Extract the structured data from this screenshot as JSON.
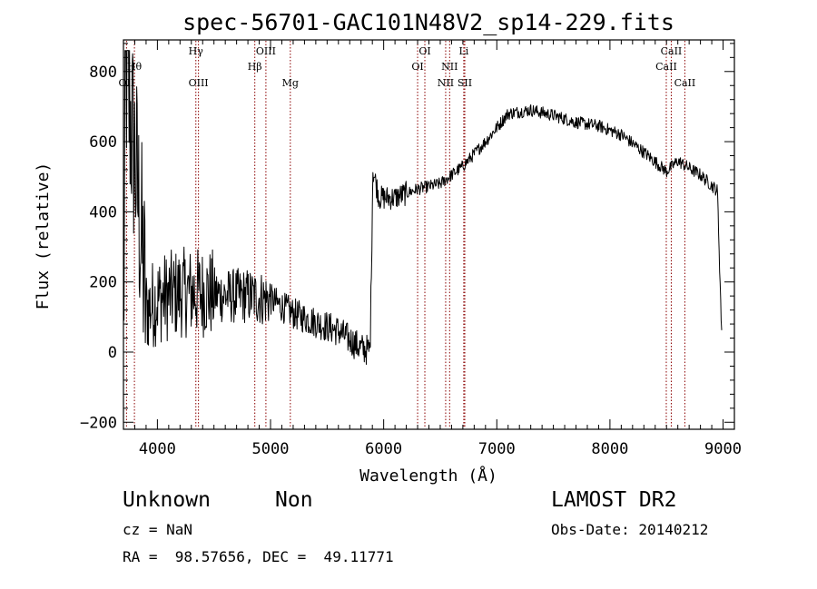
{
  "chart_data": {
    "type": "line",
    "title": "spec-56701-GAC101N48V2_sp14-229.fits",
    "xlabel": "Wavelength (Å)",
    "ylabel": "Flux (relative)",
    "xlim": [
      3700,
      9100
    ],
    "ylim": [
      -220,
      890
    ],
    "x_ticks": [
      4000,
      5000,
      6000,
      7000,
      8000,
      9000
    ],
    "y_ticks": [
      -200,
      0,
      200,
      400,
      600,
      800
    ],
    "spectrum_color": "#000000",
    "line_marker_color": "#8b0000",
    "spectrum_anchors": [
      {
        "x": 3700,
        "y": 40
      },
      {
        "x": 3720,
        "y": 820
      },
      {
        "x": 3750,
        "y": 700
      },
      {
        "x": 3800,
        "y": 560
      },
      {
        "x": 3850,
        "y": 350
      },
      {
        "x": 3900,
        "y": 120
      },
      {
        "x": 4000,
        "y": 150
      },
      {
        "x": 4200,
        "y": 170
      },
      {
        "x": 4400,
        "y": 170
      },
      {
        "x": 4600,
        "y": 160
      },
      {
        "x": 4800,
        "y": 160
      },
      {
        "x": 5000,
        "y": 150
      },
      {
        "x": 5200,
        "y": 110
      },
      {
        "x": 5400,
        "y": 85
      },
      {
        "x": 5600,
        "y": 60
      },
      {
        "x": 5800,
        "y": 10
      },
      {
        "x": 5880,
        "y": 5
      },
      {
        "x": 5905,
        "y": 520
      },
      {
        "x": 5960,
        "y": 440
      },
      {
        "x": 6100,
        "y": 440
      },
      {
        "x": 6300,
        "y": 465
      },
      {
        "x": 6500,
        "y": 480
      },
      {
        "x": 6700,
        "y": 530
      },
      {
        "x": 6900,
        "y": 600
      },
      {
        "x": 7100,
        "y": 680
      },
      {
        "x": 7300,
        "y": 690
      },
      {
        "x": 7500,
        "y": 675
      },
      {
        "x": 7700,
        "y": 655
      },
      {
        "x": 7900,
        "y": 645
      },
      {
        "x": 8100,
        "y": 620
      },
      {
        "x": 8300,
        "y": 570
      },
      {
        "x": 8500,
        "y": 515
      },
      {
        "x": 8600,
        "y": 545
      },
      {
        "x": 8800,
        "y": 505
      },
      {
        "x": 8950,
        "y": 460
      },
      {
        "x": 8990,
        "y": 20
      }
    ],
    "lines": [
      {
        "label": "OII",
        "x": 3727,
        "row": 3
      },
      {
        "label": "Hθ",
        "x": 3797,
        "row": 2
      },
      {
        "label": "Hγ",
        "x": 4340,
        "row": 1
      },
      {
        "label": "OIII",
        "x": 4363,
        "row": 3
      },
      {
        "label": "Hβ",
        "x": 4861,
        "row": 2
      },
      {
        "label": "OIII",
        "x": 4959,
        "row": 1
      },
      {
        "label": "Mg",
        "x": 5175,
        "row": 3
      },
      {
        "label": "OI",
        "x": 6300,
        "row": 2
      },
      {
        "label": "OI",
        "x": 6364,
        "row": 1
      },
      {
        "label": "NII",
        "x": 6548,
        "row": 3
      },
      {
        "label": "NII",
        "x": 6583,
        "row": 2
      },
      {
        "label": "Li",
        "x": 6708,
        "row": 1
      },
      {
        "label": "SII",
        "x": 6717,
        "row": 3
      },
      {
        "label": "CaII",
        "x": 8498,
        "row": 2
      },
      {
        "label": "CaII",
        "x": 8542,
        "row": 1
      },
      {
        "label": "CaII",
        "x": 8662,
        "row": 3
      }
    ]
  },
  "info": {
    "class": "Unknown",
    "subclass": "Non",
    "survey": "LAMOST DR2",
    "cz": "cz = NaN",
    "obs_date": "Obs-Date: 20140212",
    "coords": "RA =  98.57656, DEC =  49.11771"
  }
}
